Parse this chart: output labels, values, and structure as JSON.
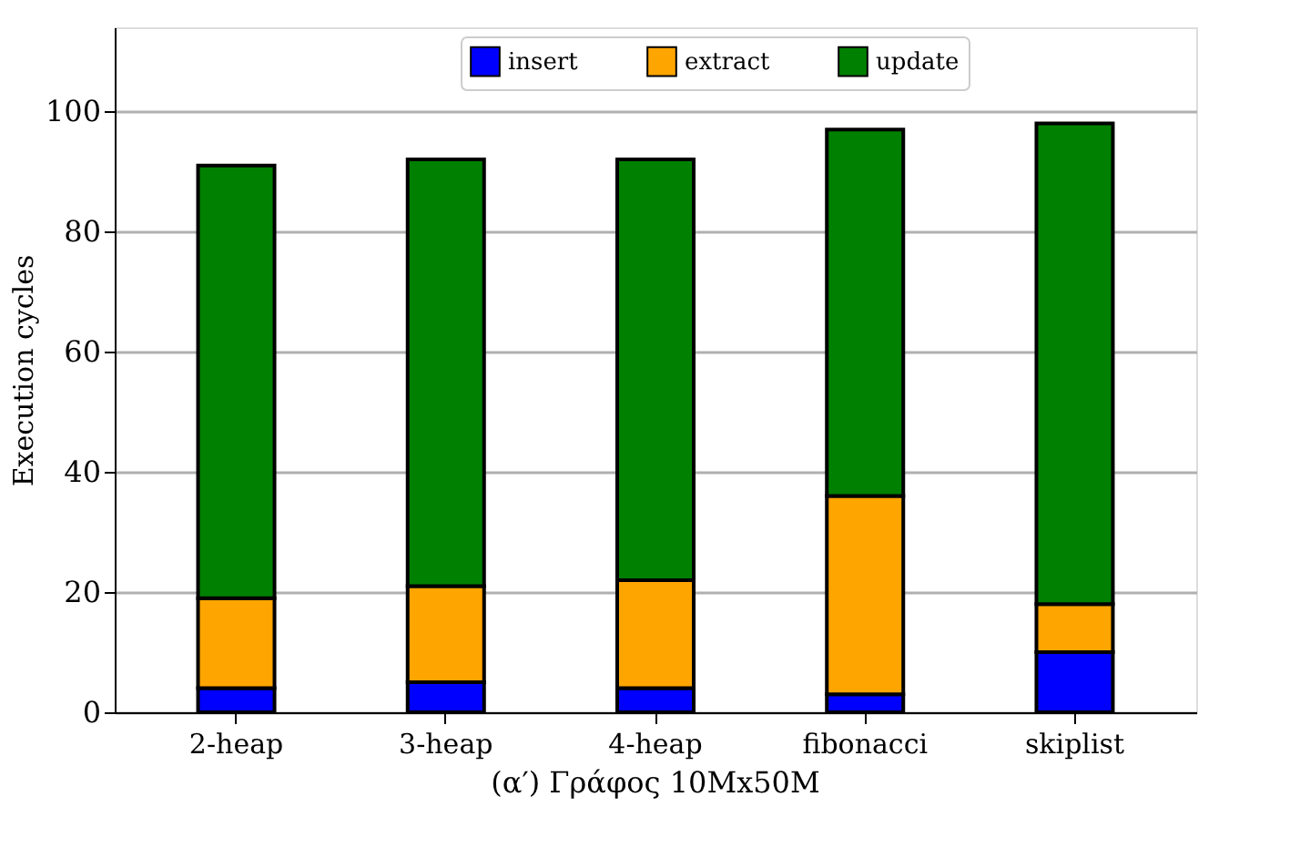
{
  "chart_data": {
    "type": "bar",
    "stacked": true,
    "title": "(α′) Γράφος 10Mx50M",
    "ylabel": "Execution cycles",
    "categories": [
      "2-heap",
      "3-heap",
      "4-heap",
      "fibonacci",
      "skiplist"
    ],
    "series": [
      {
        "name": "insert",
        "color": "#0000ff",
        "values": [
          4,
          5,
          4,
          3,
          10
        ]
      },
      {
        "name": "extract",
        "color": "#ffa500",
        "values": [
          15,
          16,
          18,
          33,
          8
        ]
      },
      {
        "name": "update",
        "color": "#008000",
        "values": [
          72,
          71,
          70,
          61,
          80
        ]
      }
    ],
    "ylim": [
      0,
      114
    ],
    "yticks": [
      0,
      20,
      40,
      60,
      80,
      100
    ],
    "grid": "y",
    "legend": "top"
  }
}
